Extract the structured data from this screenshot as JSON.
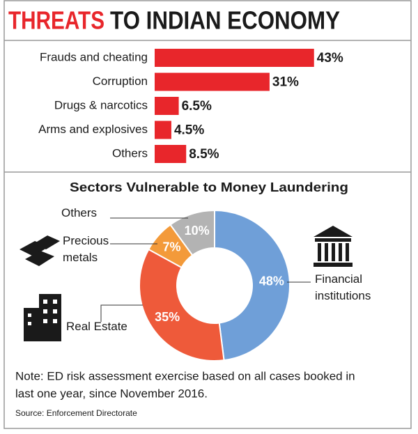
{
  "header": {
    "title_highlight": "THREATS",
    "title_rest": "TO INDIAN ECONOMY"
  },
  "chart_data": [
    {
      "type": "bar",
      "categories": [
        "Frauds and cheating",
        "Corruption",
        "Drugs & narcotics",
        "Arms and explosives",
        "Others"
      ],
      "values": [
        43,
        31,
        6.5,
        4.5,
        8.5
      ],
      "value_labels": [
        "43%",
        "31%",
        "6.5%",
        "4.5%",
        "8.5%"
      ],
      "color": "#e8262b"
    },
    {
      "type": "pie",
      "title": "Sectors Vulnerable to Money Laundering",
      "categories": [
        "Financial institutions",
        "Real Estate",
        "Precious metals",
        "Others"
      ],
      "values": [
        48,
        35,
        7,
        10
      ],
      "value_labels": [
        "48%",
        "35%",
        "7%",
        "10%"
      ],
      "colors": [
        "#6f9fd8",
        "#ee5a3a",
        "#f39a3a",
        "#b3b3b3"
      ]
    }
  ],
  "note": [
    "Note: ED risk assessment exercise based on all cases booked in",
    "last one year, since November 2016."
  ],
  "source": "Source: Enforcement Directorate"
}
